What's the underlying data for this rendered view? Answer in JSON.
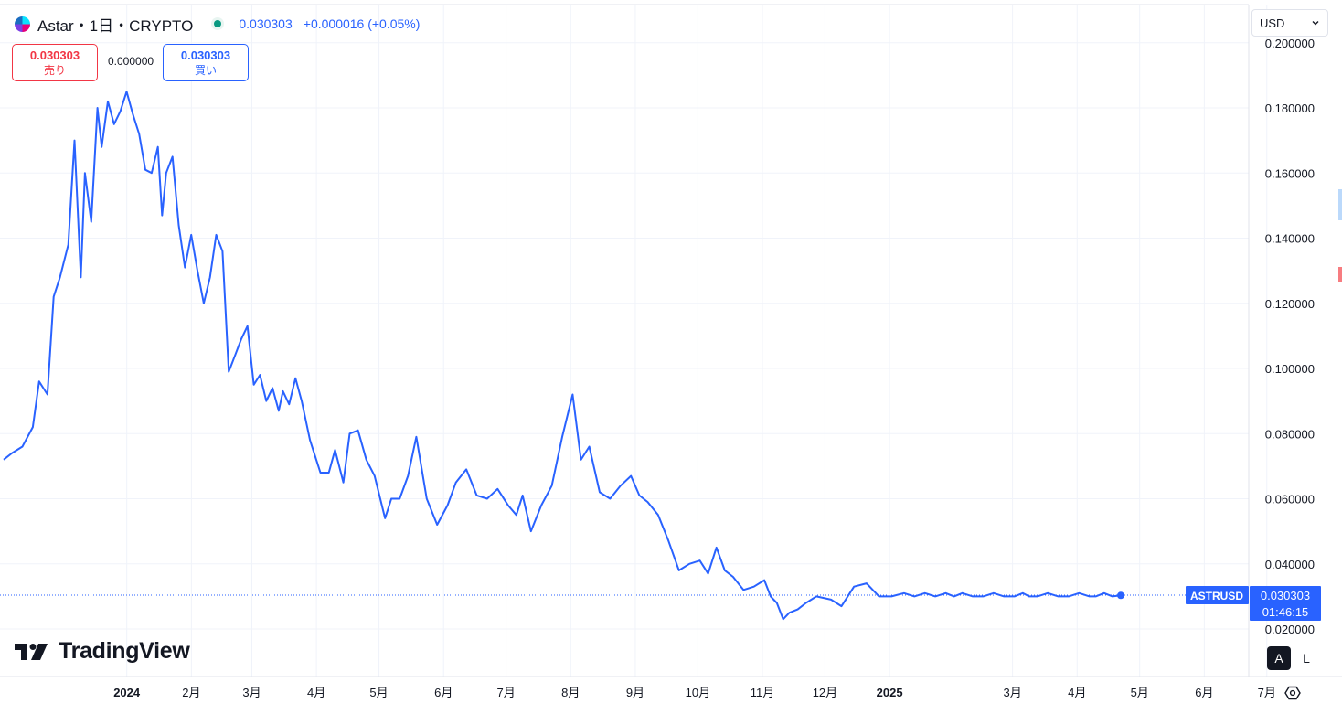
{
  "header": {
    "symbol_title": "Astar・1日・CRYPTO",
    "last_value": "0.030303",
    "change": "+0.000016 (+0.05%)"
  },
  "trade": {
    "sell_price": "0.030303",
    "sell_label": "売り",
    "spread": "0.000000",
    "buy_price": "0.030303",
    "buy_label": "買い"
  },
  "currency": {
    "selected": "USD"
  },
  "branding": {
    "logo_text": "TradingView"
  },
  "scale_buttons": {
    "auto": "A",
    "log": "L"
  },
  "price_label": {
    "symbol": "ASTRUSD",
    "price": "0.030303",
    "countdown": "01:46:15"
  },
  "colors": {
    "line": "#2962ff",
    "grid": "#f0f3fa",
    "sell": "#f23645",
    "buy": "#2962ff",
    "status": "#089981"
  },
  "icons": [
    "astar-logo-icon",
    "market-status-icon",
    "chevron-down-icon",
    "tradingview-logo-icon",
    "settings-icon"
  ],
  "chart_data": {
    "type": "line",
    "series": [
      {
        "name": "ASTRUSD",
        "x": [
          "2023-12-01",
          "2023-12-05",
          "2023-12-10",
          "2023-12-15",
          "2023-12-18",
          "2023-12-22",
          "2023-12-25",
          "2023-12-28",
          "2024-01-01",
          "2024-01-04",
          "2024-01-07",
          "2024-01-09",
          "2024-01-12",
          "2024-01-15",
          "2024-01-17",
          "2024-01-20",
          "2024-01-23",
          "2024-01-26",
          "2024-01-29",
          "2024-02-01",
          "2024-02-04",
          "2024-02-07",
          "2024-02-10",
          "2024-02-13",
          "2024-02-15",
          "2024-02-17",
          "2024-02-20",
          "2024-02-23",
          "2024-02-26",
          "2024-02-29",
          "2024-03-03",
          "2024-03-06",
          "2024-03-09",
          "2024-03-12",
          "2024-03-15",
          "2024-03-18",
          "2024-03-21",
          "2024-03-24",
          "2024-03-27",
          "2024-03-30",
          "2024-04-02",
          "2024-04-05",
          "2024-04-08",
          "2024-04-11",
          "2024-04-13",
          "2024-04-16",
          "2024-04-19",
          "2024-04-22",
          "2024-04-26",
          "2024-05-01",
          "2024-05-05",
          "2024-05-08",
          "2024-05-12",
          "2024-05-15",
          "2024-05-19",
          "2024-05-23",
          "2024-05-27",
          "2024-06-01",
          "2024-06-04",
          "2024-06-08",
          "2024-06-12",
          "2024-06-16",
          "2024-06-21",
          "2024-06-26",
          "2024-07-01",
          "2024-07-05",
          "2024-07-10",
          "2024-07-15",
          "2024-07-20",
          "2024-07-25",
          "2024-07-30",
          "2024-08-03",
          "2024-08-06",
          "2024-08-10",
          "2024-08-15",
          "2024-08-20",
          "2024-08-25",
          "2024-08-30",
          "2024-09-03",
          "2024-09-07",
          "2024-09-12",
          "2024-09-17",
          "2024-09-22",
          "2024-09-27",
          "2024-10-01",
          "2024-10-05",
          "2024-10-10",
          "2024-10-15",
          "2024-10-20",
          "2024-10-25",
          "2024-10-30",
          "2024-11-03",
          "2024-11-07",
          "2024-11-11",
          "2024-11-15",
          "2024-11-20",
          "2024-11-25",
          "2024-11-30",
          "2024-12-03",
          "2024-12-06",
          "2024-12-09",
          "2024-12-12",
          "2024-12-16",
          "2024-12-20",
          "2024-12-25",
          "2025-01-01",
          "2025-01-06",
          "2025-01-12",
          "2025-01-18",
          "2025-01-24",
          "2025-01-30",
          "2025-02-05",
          "2025-02-10",
          "2025-02-15",
          "2025-02-20",
          "2025-02-25",
          "2025-03-01",
          "2025-03-05",
          "2025-03-10",
          "2025-03-15",
          "2025-03-20",
          "2025-03-25",
          "2025-03-30",
          "2025-04-03",
          "2025-04-06",
          "2025-04-10",
          "2025-04-15",
          "2025-04-20",
          "2025-04-25",
          "2025-04-30",
          "2025-05-05",
          "2025-05-08",
          "2025-05-12",
          "2025-05-16",
          "2025-05-20"
        ],
        "values": [
          0.072,
          0.074,
          0.076,
          0.082,
          0.096,
          0.092,
          0.122,
          0.128,
          0.138,
          0.17,
          0.128,
          0.16,
          0.145,
          0.18,
          0.168,
          0.182,
          0.175,
          0.179,
          0.185,
          0.178,
          0.172,
          0.161,
          0.16,
          0.168,
          0.147,
          0.16,
          0.165,
          0.144,
          0.131,
          0.141,
          0.13,
          0.12,
          0.128,
          0.141,
          0.136,
          0.099,
          0.104,
          0.109,
          0.113,
          0.095,
          0.098,
          0.09,
          0.094,
          0.087,
          0.093,
          0.089,
          0.097,
          0.09,
          0.078,
          0.068,
          0.068,
          0.075,
          0.065,
          0.08,
          0.081,
          0.072,
          0.067,
          0.054,
          0.06,
          0.06,
          0.067,
          0.079,
          0.06,
          0.052,
          0.058,
          0.065,
          0.069,
          0.061,
          0.06,
          0.063,
          0.058,
          0.055,
          0.061,
          0.05,
          0.058,
          0.064,
          0.079,
          0.092,
          0.072,
          0.076,
          0.062,
          0.06,
          0.064,
          0.067,
          0.061,
          0.059,
          0.055,
          0.047,
          0.038,
          0.04,
          0.041,
          0.037,
          0.045,
          0.038,
          0.036,
          0.032,
          0.033,
          0.035,
          0.03,
          0.028,
          0.023,
          0.025,
          0.026,
          0.028,
          0.03,
          0.029,
          0.027,
          0.033,
          0.034,
          0.03,
          0.03,
          0.031,
          0.03,
          0.031,
          0.03,
          0.031,
          0.03,
          0.031,
          0.03,
          0.03,
          0.031,
          0.03,
          0.03,
          0.031,
          0.03,
          0.03,
          0.031,
          0.03,
          0.03,
          0.031,
          0.03,
          0.03,
          0.031,
          0.03,
          0.030303
        ]
      }
    ],
    "y_ticks": [
      "0.020000",
      "0.040000",
      "0.060000",
      "0.080000",
      "0.100000",
      "0.120000",
      "0.140000",
      "0.160000",
      "0.180000",
      "0.200000"
    ],
    "x_ticks": [
      "2024",
      "2月",
      "3月",
      "4月",
      "5月",
      "6月",
      "7月",
      "8月",
      "9月",
      "10月",
      "11月",
      "12月",
      "2025",
      "3月",
      "4月",
      "5月",
      "6月",
      "7月"
    ],
    "ylim": [
      0.012,
      0.2
    ],
    "grid": true,
    "legend": "top-left"
  }
}
